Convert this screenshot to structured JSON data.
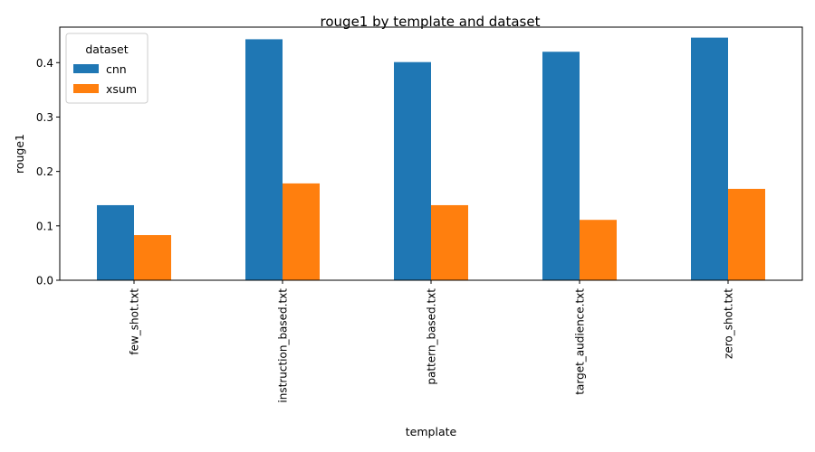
{
  "chart_data": {
    "type": "bar",
    "title": "rouge1 by template and dataset",
    "xlabel": "template",
    "ylabel": "rouge1",
    "categories": [
      "few_shot.txt",
      "instruction_based.txt",
      "pattern_based.txt",
      "target_audience.txt",
      "zero_shot.txt"
    ],
    "series": [
      {
        "name": "cnn",
        "color": "#1f77b4",
        "values": [
          0.138,
          0.443,
          0.401,
          0.42,
          0.446
        ]
      },
      {
        "name": "xsum",
        "color": "#ff7f0e",
        "values": [
          0.083,
          0.178,
          0.138,
          0.111,
          0.168
        ]
      }
    ],
    "ylim": [
      0,
      0.4653
    ],
    "yticks": [
      0.0,
      0.1,
      0.2,
      0.3,
      0.4
    ],
    "ytick_labels": [
      "0.0",
      "0.1",
      "0.2",
      "0.3",
      "0.4"
    ],
    "grid": false,
    "legend": {
      "title": "dataset",
      "placement": "top-left"
    }
  }
}
